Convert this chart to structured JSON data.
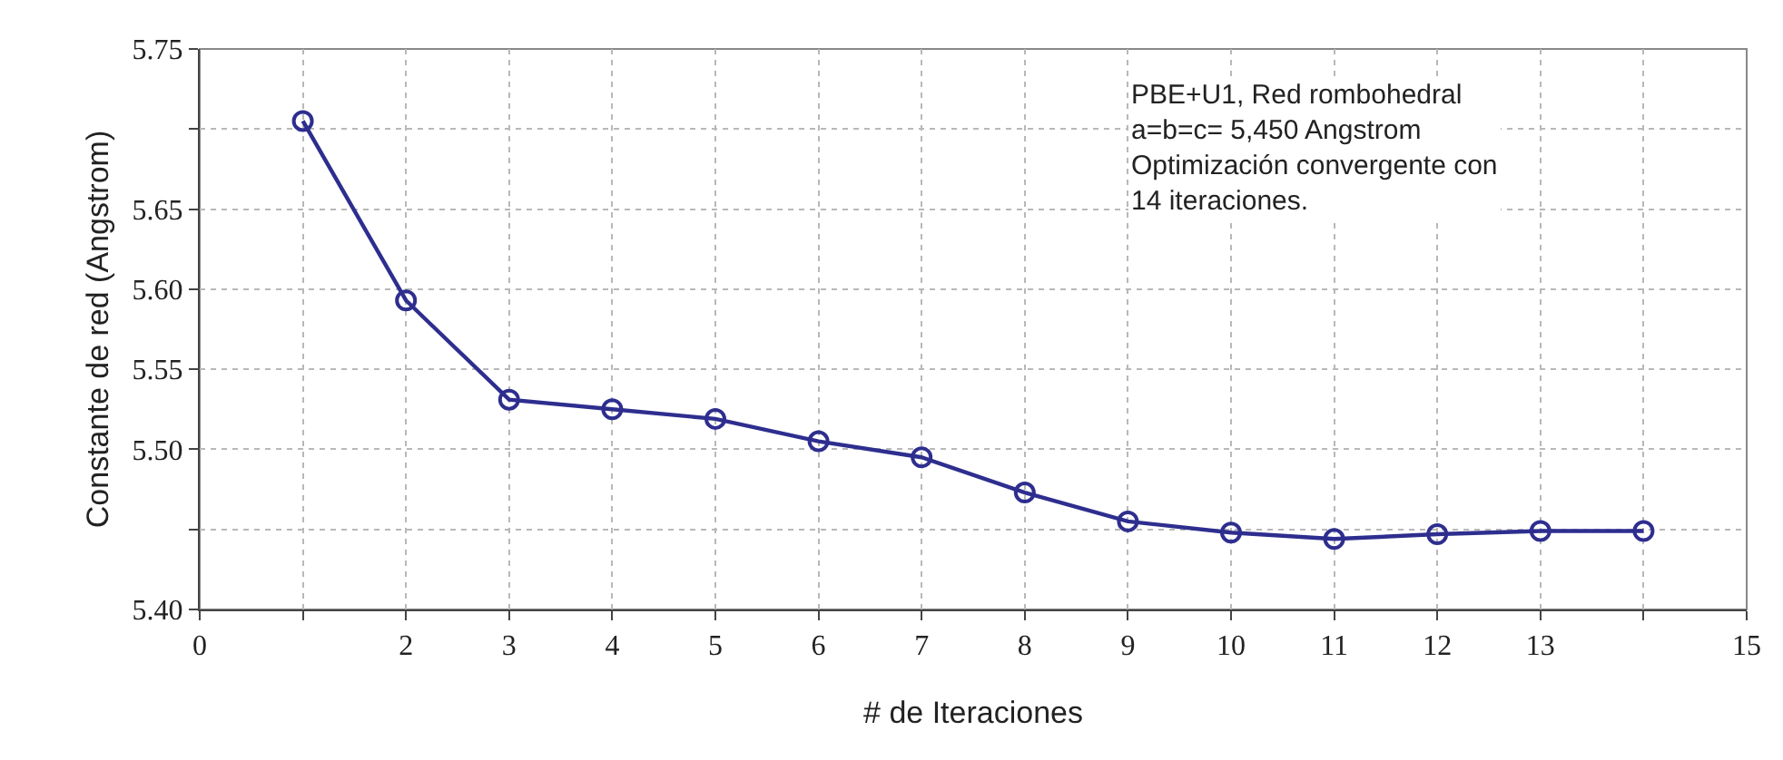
{
  "chart_data": {
    "type": "line",
    "xlabel": "# de Iteraciones",
    "ylabel": "Constante de red (Angstrom)",
    "x": [
      1,
      2,
      3,
      4,
      5,
      6,
      7,
      8,
      9,
      10,
      11,
      12,
      13,
      14
    ],
    "series": [
      {
        "color": "#2e2e8f",
        "values": [
          5.705,
          5.593,
          5.531,
          5.525,
          5.519,
          5.505,
          5.495,
          5.473,
          5.455,
          5.448,
          5.444,
          5.447,
          5.449,
          5.449
        ]
      }
    ],
    "xlim": [
      0,
      15
    ],
    "ylim": [
      5.4,
      5.75
    ],
    "xticks": [
      0,
      {
        "value": 1,
        "label": null
      },
      2,
      3,
      4,
      5,
      6,
      7,
      8,
      9,
      10,
      11,
      12,
      13,
      {
        "value": 14,
        "label": null
      },
      15
    ],
    "yticks": [
      {
        "value": 5.4,
        "label": "5.40"
      },
      {
        "value": 5.45,
        "label": null
      },
      {
        "value": 5.5,
        "label": "5.50"
      },
      5.55,
      {
        "value": 5.6,
        "label": "5.60"
      },
      5.65,
      {
        "value": 5.7,
        "label": null
      },
      5.75
    ],
    "annotations": [
      "PBE+U1, Red rombohedral\na=b=c= 5,450 Angstrom\nOptimización convergente con\n14 iteraciones."
    ],
    "grid": true,
    "marker": "circle",
    "line_style": "solid"
  }
}
